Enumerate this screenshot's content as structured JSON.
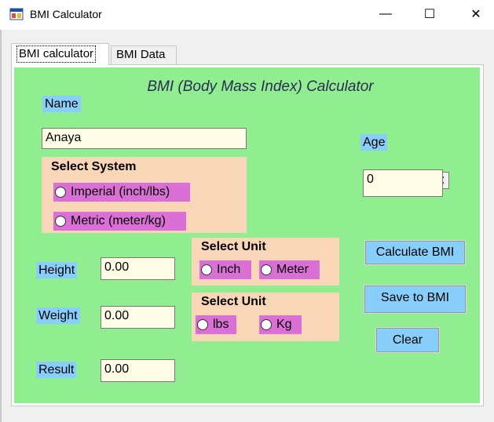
{
  "window": {
    "title": "BMI Calculator",
    "minimize_glyph": "—",
    "maximize_glyph": "☐",
    "close_glyph": "✕"
  },
  "tabs": [
    {
      "label": "BMI calculator",
      "selected": true
    },
    {
      "label": "BMI Data",
      "selected": false
    }
  ],
  "form": {
    "heading": "BMI (Body Mass Index) Calculator",
    "name_label": "Name",
    "name_value": "Anaya",
    "age_label": "Age",
    "age_value": "0",
    "system_group": {
      "title": "Select System",
      "options": [
        "Imperial (inch/lbs)",
        "Metric (meter/kg)"
      ]
    },
    "height_label": "Height",
    "height_value": "0.00",
    "weight_label": "Weight",
    "weight_value": "0.00",
    "result_label": "Result",
    "result_value": "0.00",
    "height_unit_group": {
      "title": "Select Unit",
      "options": [
        "Inch",
        "Meter"
      ]
    },
    "weight_unit_group": {
      "title": "Select Unit",
      "options": [
        "lbs",
        "Kg"
      ]
    },
    "buttons": {
      "calculate": "Calculate BMI",
      "save": "Save to BMI",
      "clear": "Clear"
    }
  },
  "colors": {
    "panel": "#90ee90",
    "label_bg": "#87cefa",
    "group_bg": "#fad6b8",
    "radio_bg": "#da70d6",
    "field_bg": "#fffde6"
  }
}
